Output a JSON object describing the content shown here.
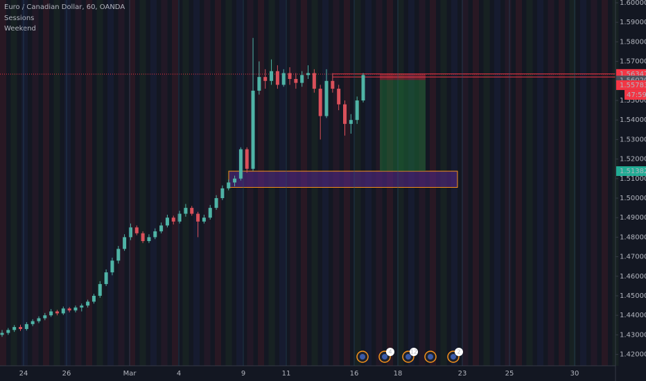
{
  "chart_data": {
    "type": "candlestick",
    "title": "Euro / Canadian Dollar, 60, OANDA",
    "indicators": [
      "Sessions",
      "Weekend"
    ],
    "ylim": [
      1.41418,
      1.60142
    ],
    "yticks": [
      {
        "value": 1.42,
        "label": "1.42000"
      },
      {
        "value": 1.43,
        "label": "1.43000"
      },
      {
        "value": 1.44,
        "label": "1.44000"
      },
      {
        "value": 1.45,
        "label": "1.45000"
      },
      {
        "value": 1.46,
        "label": "1.46000"
      },
      {
        "value": 1.47,
        "label": "1.47000"
      },
      {
        "value": 1.48,
        "label": "1.48000"
      },
      {
        "value": 1.49,
        "label": "1.49000"
      },
      {
        "value": 1.5,
        "label": "1.50000"
      },
      {
        "value": 1.51,
        "label": "1.51000"
      },
      {
        "value": 1.52,
        "label": "1.52000"
      },
      {
        "value": 1.53,
        "label": "1.53000"
      },
      {
        "value": 1.54,
        "label": "1.54000"
      },
      {
        "value": 1.55,
        "label": "1.55000"
      },
      {
        "value": 1.56,
        "label": "1.56000"
      },
      {
        "value": 1.57,
        "label": "1.57000"
      },
      {
        "value": 1.58,
        "label": "1.58000"
      },
      {
        "value": 1.59,
        "label": "1.59000"
      },
      {
        "value": 1.6,
        "label": "1.60000"
      }
    ],
    "xlabels": [
      "24",
      "26",
      "Mar",
      "4",
      "9",
      "11",
      "16",
      "18",
      "23",
      "25",
      "30"
    ],
    "up_color": "#4fb3a6",
    "down_color": "#d9505a",
    "candles": [
      [
        1.43,
        1.4325,
        1.429,
        1.431
      ],
      [
        1.431,
        1.4335,
        1.43,
        1.4325
      ],
      [
        1.4325,
        1.435,
        1.4315,
        1.434
      ],
      [
        1.434,
        1.4352,
        1.432,
        1.433
      ],
      [
        1.433,
        1.4365,
        1.4322,
        1.4355
      ],
      [
        1.4355,
        1.438,
        1.4345,
        1.437
      ],
      [
        1.437,
        1.4395,
        1.436,
        1.4385
      ],
      [
        1.4385,
        1.4412,
        1.4375,
        1.44
      ],
      [
        1.44,
        1.4432,
        1.4392,
        1.442
      ],
      [
        1.442,
        1.4428,
        1.44,
        1.441
      ],
      [
        1.441,
        1.4445,
        1.4402,
        1.4435
      ],
      [
        1.4435,
        1.4442,
        1.4415,
        1.4425
      ],
      [
        1.4425,
        1.445,
        1.4415,
        1.444
      ],
      [
        1.444,
        1.446,
        1.442,
        1.445
      ],
      [
        1.445,
        1.448,
        1.444,
        1.447
      ],
      [
        1.447,
        1.451,
        1.446,
        1.45
      ],
      [
        1.45,
        1.4575,
        1.449,
        1.456
      ],
      [
        1.456,
        1.4635,
        1.455,
        1.462
      ],
      [
        1.462,
        1.4695,
        1.4605,
        1.468
      ],
      [
        1.468,
        1.4755,
        1.4665,
        1.474
      ],
      [
        1.474,
        1.4815,
        1.473,
        1.48
      ],
      [
        1.48,
        1.487,
        1.4785,
        1.485
      ],
      [
        1.485,
        1.486,
        1.481,
        1.482
      ],
      [
        1.482,
        1.483,
        1.477,
        1.478
      ],
      [
        1.478,
        1.4815,
        1.477,
        1.48
      ],
      [
        1.48,
        1.4845,
        1.479,
        1.483
      ],
      [
        1.483,
        1.4875,
        1.482,
        1.486
      ],
      [
        1.486,
        1.4915,
        1.485,
        1.49
      ],
      [
        1.49,
        1.491,
        1.4865,
        1.488
      ],
      [
        1.488,
        1.4935,
        1.487,
        1.492
      ],
      [
        1.492,
        1.497,
        1.4905,
        1.495
      ],
      [
        1.495,
        1.496,
        1.491,
        1.492
      ],
      [
        1.492,
        1.493,
        1.48,
        1.488
      ],
      [
        1.488,
        1.4915,
        1.487,
        1.49
      ],
      [
        1.49,
        1.4965,
        1.489,
        1.495
      ],
      [
        1.495,
        1.5015,
        1.494,
        1.5
      ],
      [
        1.5,
        1.5065,
        1.499,
        1.505
      ],
      [
        1.505,
        1.5095,
        1.504,
        1.508
      ],
      [
        1.508,
        1.5115,
        1.506,
        1.51
      ],
      [
        1.51,
        1.526,
        1.509,
        1.525
      ],
      [
        1.525,
        1.526,
        1.513,
        1.515
      ],
      [
        1.515,
        1.582,
        1.514,
        1.555
      ],
      [
        1.555,
        1.57,
        1.553,
        1.562
      ],
      [
        1.562,
        1.566,
        1.556,
        1.56
      ],
      [
        1.56,
        1.571,
        1.558,
        1.565
      ],
      [
        1.565,
        1.568,
        1.556,
        1.558
      ],
      [
        1.558,
        1.566,
        1.557,
        1.564
      ],
      [
        1.564,
        1.567,
        1.558,
        1.561
      ],
      [
        1.561,
        1.564,
        1.556,
        1.559
      ],
      [
        1.559,
        1.565,
        1.557,
        1.563
      ],
      [
        1.563,
        1.568,
        1.561,
        1.564
      ],
      [
        1.564,
        1.566,
        1.554,
        1.556
      ],
      [
        1.556,
        1.558,
        1.53,
        1.542
      ],
      [
        1.542,
        1.566,
        1.541,
        1.56
      ],
      [
        1.56,
        1.564,
        1.554,
        1.556
      ],
      [
        1.556,
        1.558,
        1.545,
        1.548
      ],
      [
        1.548,
        1.55,
        1.532,
        1.538
      ],
      [
        1.538,
        1.543,
        1.533,
        1.54
      ],
      [
        1.54,
        1.552,
        1.538,
        1.55
      ],
      [
        1.55,
        1.564,
        1.549,
        1.563
      ]
    ],
    "lines": [
      {
        "value": 1.56355,
        "color": "#f23645"
      },
      {
        "value": 1.562,
        "color": "#f23645"
      }
    ],
    "current_price": 1.56347,
    "position": {
      "stop": 1.56355,
      "entry": 1.5605,
      "target": 1.51382
    },
    "zone": {
      "top": 1.5138,
      "bottom": 1.5055
    },
    "price_labels": [
      {
        "value": 1.56355,
        "label": "1.56355",
        "color": "#f23645"
      },
      {
        "value": 1.56347,
        "label": "1.56347",
        "color": "#f23645"
      },
      {
        "value": 1.56004,
        "label": "1.56004",
        "color": "#f23645"
      },
      {
        "value": 1.5602,
        "label": "1.56020",
        "color": "#4a4e59"
      },
      {
        "value": 1.55783,
        "label": "1.55783",
        "color": "#f23645"
      },
      {
        "value": 1.51382,
        "label": "1.51382",
        "color": "#22ab94"
      }
    ],
    "countdown": "47:59",
    "event_badges": [
      "4",
      "12",
      "2"
    ]
  }
}
